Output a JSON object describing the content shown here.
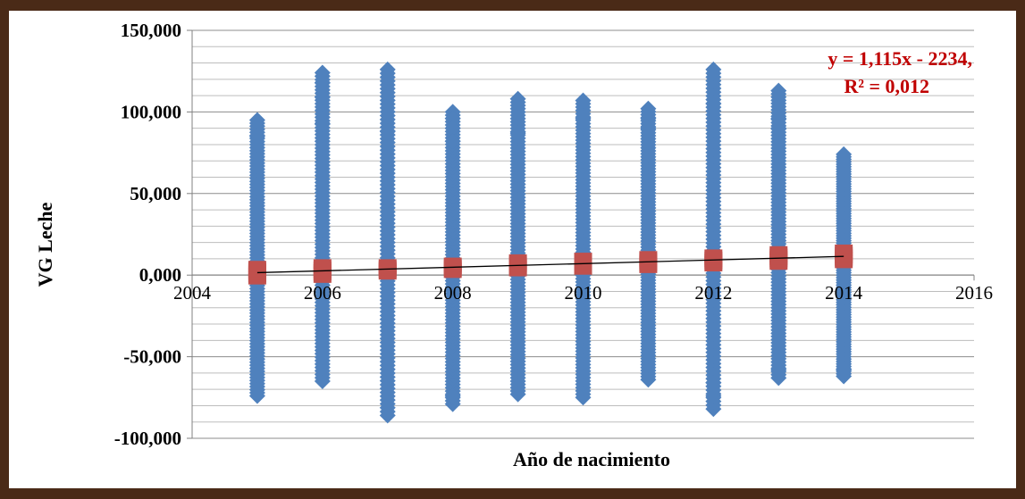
{
  "chart_data": {
    "type": "scatter",
    "xlabel": "Año de nacimiento",
    "ylabel": "VG Leche",
    "xlim": [
      2004,
      2016
    ],
    "ylim": [
      -100,
      150
    ],
    "x_ticks": [
      2004,
      2006,
      2008,
      2010,
      2012,
      2014,
      2016
    ],
    "x_tick_labels": [
      "2004",
      "2006",
      "2008",
      "2010",
      "2012",
      "2014",
      "2016"
    ],
    "y_ticks": [
      -100,
      -50,
      0,
      50,
      100,
      150
    ],
    "y_tick_labels": [
      "-100,000",
      "-50,000",
      "0,000",
      "50,000",
      "100,000",
      "150,000"
    ],
    "grid": {
      "horizontal": true,
      "vertical": false
    },
    "series": [
      {
        "color": "#4f81bd",
        "marker": "diamond",
        "groups": [
          {
            "x": 2005,
            "min": -74,
            "max": 95,
            "outliers": [
              85
            ]
          },
          {
            "x": 2006,
            "min": -65,
            "max": 124,
            "outliers": [
              118,
              109,
              93
            ]
          },
          {
            "x": 2007,
            "min": -86,
            "max": 126,
            "outliers": [
              88
            ]
          },
          {
            "x": 2008,
            "min": -79,
            "max": 100,
            "outliers": [
              -74,
              96,
              90,
              82
            ]
          },
          {
            "x": 2009,
            "min": -73,
            "max": 108,
            "outliers": [
              87
            ]
          },
          {
            "x": 2010,
            "min": -75,
            "max": 107,
            "outliers": [
              96
            ]
          },
          {
            "x": 2011,
            "min": -64,
            "max": 102,
            "outliers": [
              96,
              90
            ]
          },
          {
            "x": 2012,
            "min": -82,
            "max": 126,
            "outliers": [
              105,
              -74,
              -66
            ]
          },
          {
            "x": 2013,
            "min": -63,
            "max": 113,
            "outliers": [
              96,
              90,
              -58
            ]
          },
          {
            "x": 2014,
            "min": -62,
            "max": 74,
            "outliers": [
              -58
            ]
          }
        ]
      },
      {
        "color": "#c0504d",
        "marker": "square",
        "groups": [
          {
            "x": 2005,
            "min": -3,
            "max": 6
          },
          {
            "x": 2006,
            "min": -2,
            "max": 7
          },
          {
            "x": 2007,
            "min": 0,
            "max": 7
          },
          {
            "x": 2008,
            "min": 1,
            "max": 8
          },
          {
            "x": 2009,
            "min": 2,
            "max": 10
          },
          {
            "x": 2010,
            "min": 3,
            "max": 11
          },
          {
            "x": 2011,
            "min": 4,
            "max": 12
          },
          {
            "x": 2012,
            "min": 5,
            "max": 13
          },
          {
            "x": 2013,
            "min": 6,
            "max": 15
          },
          {
            "x": 2014,
            "min": 7,
            "max": 16
          }
        ]
      }
    ],
    "trendline": {
      "type": "linear",
      "color": "#000000",
      "x": [
        2005,
        2014
      ],
      "y": [
        1.5,
        11.5
      ]
    },
    "annotations": [
      {
        "text": "y = 1,115x - 2234,",
        "color": "#c00000"
      },
      {
        "text": "R² = 0,012",
        "color": "#c00000"
      }
    ]
  }
}
